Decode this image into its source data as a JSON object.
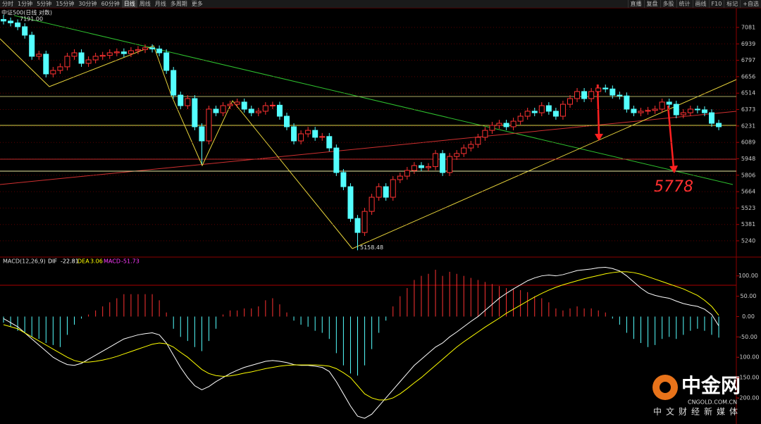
{
  "toolbar": {
    "left": [
      "分时",
      "1分钟",
      "5分钟",
      "15分钟",
      "30分钟",
      "60分钟",
      "日线",
      "周线",
      "月线",
      "多周期",
      "更多"
    ],
    "right": [
      "直播",
      "复盘",
      "多股",
      "统计",
      "画线",
      "F10",
      "标记",
      "+自选"
    ]
  },
  "chart_data": [
    {
      "type": "candlestick",
      "title": "中证500(日线 对数)",
      "up_color": "#ff3232",
      "down_color": "#54ffff",
      "grid": true,
      "open": [
        7150,
        7136,
        7120,
        7087,
        7014,
        6832,
        6850,
        6680,
        6710,
        6741,
        6832,
        6862,
        6771,
        6801,
        6832,
        6840,
        6862,
        6870,
        6855,
        6880,
        6890,
        6905,
        6895,
        6862,
        6710,
        6497,
        6406,
        6467,
        6224,
        6102,
        6376,
        6345,
        6406,
        6418,
        6437,
        6376,
        6345,
        6358,
        6406,
        6410,
        6315,
        6224,
        6102,
        6163,
        6193,
        6133,
        6140,
        6041,
        5829,
        5707,
        5433,
        5312,
        5494,
        5616,
        5707,
        5616,
        5768,
        5798,
        5847,
        5889,
        5871,
        5880,
        5993,
        5829,
        5968,
        5993,
        6041,
        6072,
        6133,
        6193,
        6236,
        6254,
        6224,
        6272,
        6315,
        6358,
        6345,
        6406,
        6358,
        6315,
        6418,
        6467,
        6528,
        6467,
        6528,
        6558,
        6550,
        6497,
        6490,
        6376,
        6345,
        6358,
        6365,
        6376,
        6437,
        6418,
        6327,
        6345,
        6376,
        6370,
        6345,
        6254
      ],
      "high": [
        7191,
        7166,
        7150,
        7117,
        7044,
        6880,
        6880,
        6740,
        6771,
        6862,
        6892,
        6892,
        6831,
        6862,
        6870,
        6892,
        6900,
        6900,
        6910,
        6920,
        6935,
        6935,
        6925,
        6892,
        6740,
        6527,
        6497,
        6497,
        6254,
        6406,
        6406,
        6436,
        6448,
        6467,
        6467,
        6406,
        6388,
        6436,
        6440,
        6440,
        6345,
        6254,
        6193,
        6223,
        6223,
        6170,
        6170,
        6071,
        5859,
        5737,
        5463,
        5524,
        5646,
        5737,
        5737,
        5798,
        5828,
        5877,
        5919,
        5919,
        5910,
        6023,
        6023,
        5998,
        6023,
        6071,
        6102,
        6163,
        6223,
        6266,
        6284,
        6284,
        6302,
        6345,
        6388,
        6388,
        6436,
        6436,
        6388,
        6448,
        6497,
        6558,
        6558,
        6558,
        6588,
        6588,
        6580,
        6527,
        6520,
        6406,
        6388,
        6395,
        6406,
        6467,
        6467,
        6448,
        6375,
        6406,
        6406,
        6400,
        6375,
        6284
      ],
      "low": [
        7106,
        7090,
        7057,
        6984,
        6802,
        6802,
        6650,
        6650,
        6680,
        6711,
        6802,
        6741,
        6741,
        6771,
        6802,
        6810,
        6832,
        6825,
        6825,
        6850,
        6860,
        6865,
        6832,
        6680,
        6467,
        6376,
        6376,
        6194,
        5900,
        6072,
        6315,
        6315,
        6376,
        6388,
        6346,
        6315,
        6315,
        6328,
        6376,
        6285,
        6194,
        6072,
        6072,
        6133,
        6103,
        6103,
        6011,
        5799,
        5677,
        5403,
        5158.48,
        5282,
        5464,
        5586,
        5586,
        5586,
        5738,
        5768,
        5817,
        5841,
        5841,
        5850,
        5799,
        5799,
        5938,
        5963,
        6011,
        6042,
        6103,
        6163,
        6206,
        6194,
        6194,
        6242,
        6285,
        6315,
        6315,
        6328,
        6285,
        6285,
        6388,
        6437,
        6437,
        6437,
        6498,
        6520,
        6467,
        6460,
        6346,
        6315,
        6315,
        6328,
        6335,
        6346,
        6388,
        6297,
        6297,
        6315,
        6340,
        6315,
        6224,
        6194
      ],
      "close": [
        7136,
        7120,
        7087,
        7014,
        6832,
        6850,
        6680,
        6710,
        6741,
        6832,
        6862,
        6771,
        6801,
        6832,
        6840,
        6862,
        6870,
        6855,
        6880,
        6890,
        6905,
        6895,
        6862,
        6710,
        6497,
        6406,
        6467,
        6224,
        6102,
        6376,
        6345,
        6406,
        6418,
        6437,
        6376,
        6345,
        6358,
        6406,
        6410,
        6315,
        6224,
        6102,
        6163,
        6193,
        6133,
        6140,
        6041,
        5829,
        5707,
        5433,
        5312,
        5494,
        5616,
        5707,
        5616,
        5768,
        5798,
        5847,
        5889,
        5871,
        5880,
        5993,
        5829,
        5968,
        5993,
        6041,
        6072,
        6133,
        6193,
        6236,
        6254,
        6224,
        6272,
        6315,
        6358,
        6345,
        6406,
        6358,
        6315,
        6418,
        6467,
        6528,
        6467,
        6528,
        6558,
        6550,
        6497,
        6490,
        6376,
        6345,
        6358,
        6365,
        6376,
        6437,
        6418,
        6327,
        6345,
        6376,
        6370,
        6345,
        6254,
        6224
      ],
      "ylim": [
        5118,
        7196
      ],
      "yticks": [
        7081,
        6939,
        6797,
        6656,
        6514,
        6373,
        6231,
        6089,
        5948,
        5806,
        5664,
        5523,
        5381,
        5240
      ],
      "high_mark": {
        "value": 7191,
        "label": "7191.00"
      },
      "low_mark": {
        "value": 5158.48,
        "label": "5158.48"
      },
      "note": 5778
    },
    {
      "type": "macd",
      "title": "MACD(12,26,9)",
      "series": [
        {
          "name": "MACD",
          "color": "#ff3cff",
          "up_color": "#ff3232",
          "down_color": "#54ffff",
          "values": [
            -15,
            -25,
            -35,
            -40,
            -50,
            -55,
            -65,
            -70,
            -75,
            -45,
            -20,
            -5,
            5,
            15,
            25,
            35,
            45,
            55,
            55,
            55,
            55,
            55,
            40,
            10,
            -30,
            -50,
            -60,
            -75,
            -85,
            -60,
            -30,
            5,
            15,
            15,
            20,
            20,
            25,
            40,
            45,
            30,
            10,
            -10,
            -20,
            -25,
            -35,
            -40,
            -55,
            -90,
            -120,
            -140,
            -145,
            -120,
            -80,
            -40,
            -10,
            25,
            50,
            70,
            90,
            100,
            105,
            115,
            100,
            110,
            105,
            100,
            95,
            90,
            85,
            80,
            75,
            70,
            68,
            65,
            60,
            50,
            45,
            35,
            20,
            15,
            20,
            25,
            20,
            20,
            15,
            10,
            -5,
            -20,
            -40,
            -55,
            -65,
            -75,
            -70,
            -55,
            -50,
            -55,
            -45,
            -35,
            -30,
            -35,
            -45,
            -51.73
          ]
        },
        {
          "name": "DIF",
          "color": "#ffffff",
          "values": [
            -5,
            -15,
            -25,
            -40,
            -55,
            -70,
            -85,
            -100,
            -110,
            -118,
            -120,
            -115,
            -105,
            -95,
            -85,
            -75,
            -65,
            -55,
            -50,
            -45,
            -42,
            -40,
            -45,
            -65,
            -95,
            -125,
            -150,
            -170,
            -180,
            -172,
            -160,
            -150,
            -140,
            -132,
            -125,
            -120,
            -115,
            -110,
            -108,
            -110,
            -113,
            -118,
            -120,
            -120,
            -122,
            -125,
            -135,
            -160,
            -190,
            -220,
            -245,
            -250,
            -240,
            -220,
            -200,
            -180,
            -160,
            -140,
            -120,
            -105,
            -90,
            -75,
            -65,
            -50,
            -38,
            -25,
            -12,
            0,
            15,
            30,
            45,
            57,
            68,
            78,
            88,
            95,
            100,
            102,
            100,
            103,
            108,
            113,
            115,
            117,
            120,
            121,
            118,
            112,
            100,
            85,
            70,
            58,
            52,
            48,
            45,
            38,
            32,
            28,
            25,
            18,
            5,
            -22.81
          ]
        },
        {
          "name": "DEA",
          "color": "#ffff00",
          "values": [
            -20,
            -25,
            -30,
            -40,
            -50,
            -60,
            -70,
            -80,
            -90,
            -100,
            -108,
            -112,
            -112,
            -110,
            -107,
            -103,
            -98,
            -92,
            -86,
            -80,
            -74,
            -68,
            -65,
            -67,
            -75,
            -88,
            -100,
            -115,
            -130,
            -140,
            -145,
            -147,
            -146,
            -143,
            -139,
            -136,
            -132,
            -128,
            -125,
            -122,
            -120,
            -119,
            -119,
            -119,
            -119,
            -120,
            -122,
            -128,
            -138,
            -150,
            -170,
            -190,
            -200,
            -205,
            -205,
            -200,
            -190,
            -177,
            -163,
            -150,
            -135,
            -120,
            -105,
            -90,
            -75,
            -62,
            -50,
            -38,
            -26,
            -15,
            -4,
            8,
            18,
            28,
            38,
            48,
            57,
            65,
            72,
            78,
            83,
            88,
            93,
            97,
            101,
            105,
            108,
            110,
            110,
            108,
            104,
            98,
            92,
            86,
            80,
            74,
            68,
            60,
            52,
            40,
            25,
            3.06
          ]
        }
      ],
      "ylim": [
        -252,
        141
      ],
      "yticks": [
        {
          "value": 100,
          "label": "100.00"
        },
        {
          "value": 50,
          "label": "50.00"
        },
        {
          "value": 0,
          "label": "0.00"
        },
        {
          "value": -50,
          "label": "-50.00"
        },
        {
          "value": -100,
          "label": "-100.00"
        },
        {
          "value": -150,
          "label": "-150.00"
        },
        {
          "value": -200,
          "label": "-200.00"
        }
      ]
    }
  ],
  "watermark": {
    "brand": "中金网",
    "domain": "CNGOLD.COM.CN",
    "slogan": "中文财经新媒体"
  }
}
